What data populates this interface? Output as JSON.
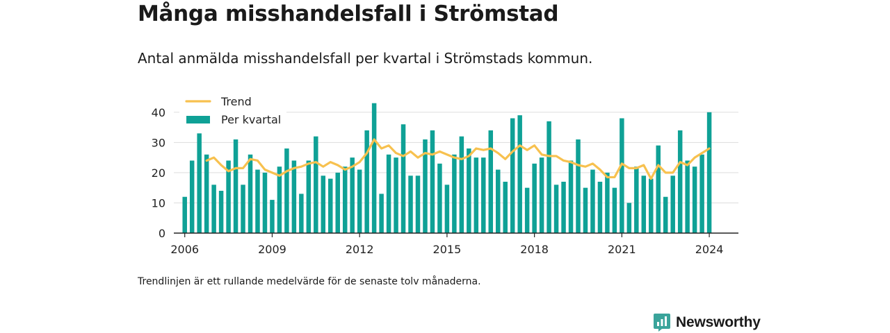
{
  "title": "Många misshandelsfall i Strömstad",
  "subtitle": "Antal anmälda misshandelsfall per kvartal i Strömstads kommun.",
  "footnote": "Trendlinjen är ett rullande medelvärde för de senaste tolv månaderna.",
  "brand": {
    "name": "Newsworthy",
    "logo_icon": "bar-chart-speech-bubble-icon"
  },
  "colors": {
    "bars": "#0fa196",
    "trend": "#f7c14f",
    "brand": "#3aa49b",
    "axis": "#222222",
    "grid": "#dddddd"
  },
  "chart_data": {
    "type": "bar",
    "xlabel": "",
    "ylabel": "",
    "ylim": [
      0,
      45
    ],
    "y_ticks": [
      0,
      10,
      20,
      30,
      40
    ],
    "x_ticks": [
      "2006",
      "2009",
      "2012",
      "2015",
      "2018",
      "2021",
      "2024"
    ],
    "x_range": [
      2005.625,
      2025.0
    ],
    "grid": true,
    "legend_position": "top-left",
    "series": [
      {
        "name": "Per kvartal",
        "kind": "bar",
        "x": [
          2006.0,
          2006.25,
          2006.5,
          2006.75,
          2007.0,
          2007.25,
          2007.5,
          2007.75,
          2008.0,
          2008.25,
          2008.5,
          2008.75,
          2009.0,
          2009.25,
          2009.5,
          2009.75,
          2010.0,
          2010.25,
          2010.5,
          2010.75,
          2011.0,
          2011.25,
          2011.5,
          2011.75,
          2012.0,
          2012.25,
          2012.5,
          2012.75,
          2013.0,
          2013.25,
          2013.5,
          2013.75,
          2014.0,
          2014.25,
          2014.5,
          2014.75,
          2015.0,
          2015.25,
          2015.5,
          2015.75,
          2016.0,
          2016.25,
          2016.5,
          2016.75,
          2017.0,
          2017.25,
          2017.5,
          2017.75,
          2018.0,
          2018.25,
          2018.5,
          2018.75,
          2019.0,
          2019.25,
          2019.5,
          2019.75,
          2020.0,
          2020.25,
          2020.5,
          2020.75,
          2021.0,
          2021.25,
          2021.5,
          2021.75,
          2022.0,
          2022.25,
          2022.5,
          2022.75,
          2023.0,
          2023.25,
          2023.5,
          2023.75,
          2024.0
        ],
        "values": [
          12,
          24,
          33,
          26,
          16,
          14,
          24,
          31,
          16,
          26,
          21,
          20,
          11,
          22,
          28,
          24,
          13,
          24,
          32,
          19,
          18,
          20,
          22,
          25,
          21,
          34,
          43,
          13,
          26,
          25,
          36,
          19,
          19,
          31,
          34,
          23,
          16,
          26,
          32,
          28,
          25,
          25,
          34,
          21,
          17,
          38,
          39,
          15,
          23,
          25,
          37,
          16,
          17,
          24,
          31,
          15,
          21,
          17,
          20,
          15,
          38,
          10,
          22,
          19,
          18,
          29,
          12,
          19,
          34,
          24,
          22,
          26,
          40
        ]
      },
      {
        "name": "Trend",
        "kind": "line",
        "x": [
          2006.75,
          2007.0,
          2007.25,
          2007.5,
          2007.75,
          2008.0,
          2008.25,
          2008.5,
          2008.75,
          2009.0,
          2009.25,
          2009.5,
          2009.75,
          2010.0,
          2010.25,
          2010.5,
          2010.75,
          2011.0,
          2011.25,
          2011.5,
          2011.75,
          2012.0,
          2012.25,
          2012.5,
          2012.75,
          2013.0,
          2013.25,
          2013.5,
          2013.75,
          2014.0,
          2014.25,
          2014.5,
          2014.75,
          2015.0,
          2015.25,
          2015.5,
          2015.75,
          2016.0,
          2016.25,
          2016.5,
          2016.75,
          2017.0,
          2017.25,
          2017.5,
          2017.75,
          2018.0,
          2018.25,
          2018.5,
          2018.75,
          2019.0,
          2019.25,
          2019.5,
          2019.75,
          2020.0,
          2020.25,
          2020.5,
          2020.75,
          2021.0,
          2021.25,
          2021.5,
          2021.75,
          2022.0,
          2022.25,
          2022.5,
          2022.75,
          2023.0,
          2023.25,
          2023.5,
          2023.75,
          2024.0
        ],
        "values": [
          24.0,
          25.0,
          22.5,
          20.5,
          21.5,
          21.5,
          24.5,
          24.0,
          21.0,
          20.0,
          19.0,
          20.5,
          21.5,
          22.0,
          23.0,
          23.5,
          22.0,
          23.5,
          22.5,
          21.0,
          22.0,
          23.5,
          26.5,
          31.0,
          28.0,
          29.0,
          26.5,
          25.5,
          27.0,
          25.0,
          26.5,
          26.0,
          27.0,
          26.0,
          25.0,
          24.5,
          25.5,
          28.0,
          27.5,
          28.0,
          26.5,
          24.5,
          27.0,
          29.0,
          27.5,
          29.0,
          26.0,
          25.5,
          25.5,
          24.0,
          23.5,
          22.5,
          22.0,
          23.0,
          21.0,
          18.5,
          18.5,
          23.0,
          21.5,
          21.5,
          22.5,
          18.0,
          22.5,
          20.0,
          20.0,
          23.5,
          22.5,
          25.0,
          26.5,
          28.0
        ]
      }
    ]
  }
}
